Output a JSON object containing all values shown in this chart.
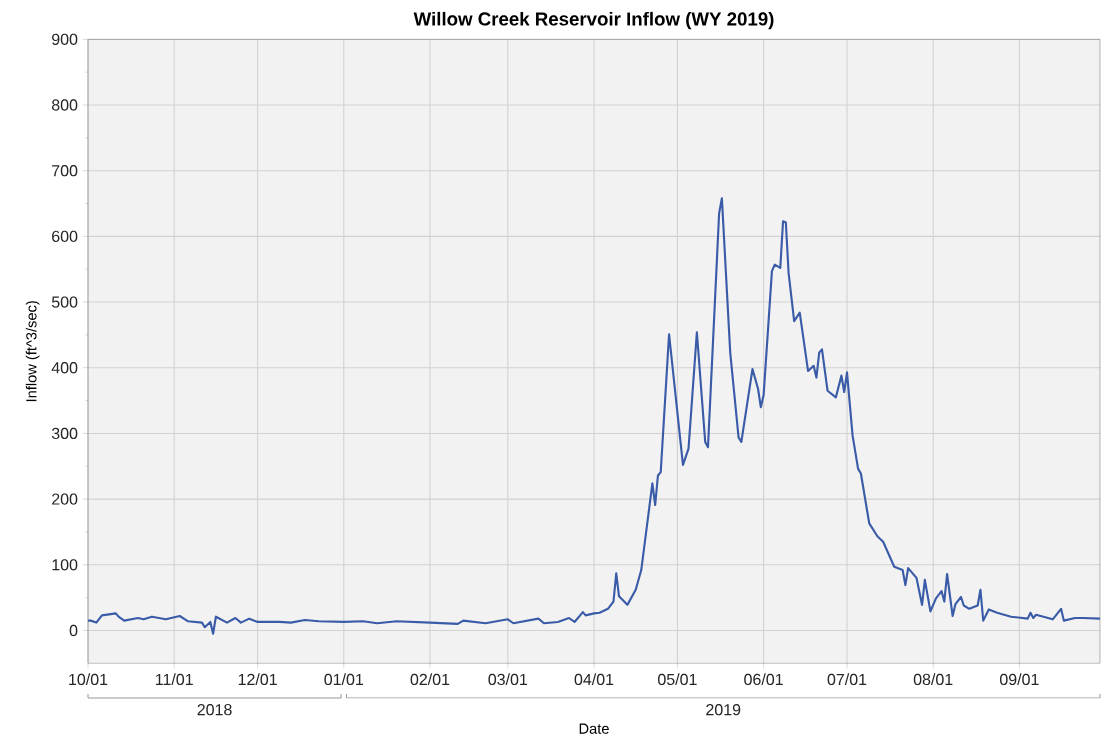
{
  "chart_data": {
    "type": "line",
    "title": "Willow Creek Reservoir Inflow (WY 2019)",
    "xlabel": "Date",
    "ylabel": "Inflow (ft^3/sec)",
    "annotations": [
      "2018",
      "2019"
    ],
    "series": [
      {
        "color": "#3a5ba7",
        "x": [
          "2018-10-01",
          "2018-10-02",
          "2018-10-04",
          "2018-10-06",
          "2018-10-11",
          "2018-10-12",
          "2018-10-14",
          "2018-10-19",
          "2018-10-21",
          "2018-10-24",
          "2018-10-29",
          "2018-11-03",
          "2018-11-06",
          "2018-11-11",
          "2018-11-12",
          "2018-11-14",
          "2018-11-15",
          "2018-11-16",
          "2018-11-20",
          "2018-11-23",
          "2018-11-25",
          "2018-11-28",
          "2018-12-01",
          "2018-12-09",
          "2018-12-13",
          "2018-12-18",
          "2018-12-23",
          "2019-01-01",
          "2019-01-08",
          "2019-01-13",
          "2019-01-20",
          "2019-02-01",
          "2019-02-11",
          "2019-02-13",
          "2019-02-21",
          "2019-03-01",
          "2019-03-03",
          "2019-03-12",
          "2019-03-14",
          "2019-03-19",
          "2019-03-23",
          "2019-03-25",
          "2019-03-28",
          "2019-03-29",
          "2019-04-01",
          "2019-04-03",
          "2019-04-06",
          "2019-04-08",
          "2019-04-09",
          "2019-04-10",
          "2019-04-13",
          "2019-04-16",
          "2019-04-18",
          "2019-04-22",
          "2019-04-23",
          "2019-04-24",
          "2019-04-25",
          "2019-04-28",
          "2019-05-03",
          "2019-05-05",
          "2019-05-08",
          "2019-05-11",
          "2019-05-12",
          "2019-05-16",
          "2019-05-17",
          "2019-05-20",
          "2019-05-23",
          "2019-05-24",
          "2019-05-28",
          "2019-05-30",
          "2019-05-31",
          "2019-06-01",
          "2019-06-04",
          "2019-06-05",
          "2019-06-07",
          "2019-06-08",
          "2019-06-09",
          "2019-06-10",
          "2019-06-12",
          "2019-06-14",
          "2019-06-17",
          "2019-06-19",
          "2019-06-20",
          "2019-06-21",
          "2019-06-22",
          "2019-06-24",
          "2019-06-27",
          "2019-06-29",
          "2019-06-30",
          "2019-07-01",
          "2019-07-03",
          "2019-07-05",
          "2019-07-06",
          "2019-07-09",
          "2019-07-12",
          "2019-07-14",
          "2019-07-18",
          "2019-07-21",
          "2019-07-22",
          "2019-07-23",
          "2019-07-26",
          "2019-07-28",
          "2019-07-29",
          "2019-07-31",
          "2019-08-02",
          "2019-08-04",
          "2019-08-05",
          "2019-08-06",
          "2019-08-08",
          "2019-08-09",
          "2019-08-11",
          "2019-08-12",
          "2019-08-14",
          "2019-08-17",
          "2019-08-18",
          "2019-08-19",
          "2019-08-21",
          "2019-08-24",
          "2019-08-29",
          "2019-09-04",
          "2019-09-05",
          "2019-09-06",
          "2019-09-07",
          "2019-09-13",
          "2019-09-16",
          "2019-09-17",
          "2019-09-21",
          "2019-09-24",
          "2019-09-30"
        ],
        "values": [
          15,
          15,
          12,
          23,
          26,
          21,
          15,
          19,
          17,
          21,
          17,
          22,
          14,
          12,
          5,
          13,
          -5,
          21,
          12,
          19,
          12,
          18,
          13,
          13,
          12,
          16,
          14,
          13,
          14,
          11,
          14,
          12,
          10,
          15,
          11,
          17,
          11,
          18,
          11,
          13,
          19,
          13,
          28,
          23,
          26,
          27,
          33,
          44,
          87,
          52,
          39,
          62,
          92,
          224,
          191,
          236,
          241,
          451,
          252,
          277,
          454,
          287,
          279,
          635,
          658,
          423,
          294,
          287,
          398,
          368,
          340,
          358,
          547,
          557,
          552,
          623,
          621,
          544,
          471,
          484,
          395,
          403,
          385,
          423,
          428,
          365,
          355,
          388,
          363,
          393,
          297,
          246,
          239,
          163,
          143,
          135,
          97,
          92,
          69,
          95,
          80,
          39,
          77,
          29,
          49,
          60,
          44,
          86,
          22,
          40,
          51,
          38,
          33,
          38,
          62,
          15,
          32,
          27,
          21,
          18,
          27,
          19,
          24,
          17,
          33,
          15,
          19,
          19,
          18
        ]
      }
    ],
    "xlim": [
      "2018-10-01",
      "2019-09-30"
    ],
    "xticks": [
      {
        "value": "2018-10-01",
        "label": "10/01"
      },
      {
        "value": "2018-11-01",
        "label": "11/01"
      },
      {
        "value": "2018-12-01",
        "label": "12/01"
      },
      {
        "value": "2019-01-01",
        "label": "01/01"
      },
      {
        "value": "2019-02-01",
        "label": "02/01"
      },
      {
        "value": "2019-03-01",
        "label": "03/01"
      },
      {
        "value": "2019-04-01",
        "label": "04/01"
      },
      {
        "value": "2019-05-01",
        "label": "05/01"
      },
      {
        "value": "2019-06-01",
        "label": "06/01"
      },
      {
        "value": "2019-07-01",
        "label": "07/01"
      },
      {
        "value": "2019-08-01",
        "label": "08/01"
      },
      {
        "value": "2019-09-01",
        "label": "09/01"
      }
    ],
    "ylim": [
      -50,
      900
    ],
    "yticks": [
      0,
      100,
      200,
      300,
      400,
      500,
      600,
      700,
      800,
      900
    ],
    "grid": true,
    "marker": "none",
    "line_style": "solid"
  }
}
